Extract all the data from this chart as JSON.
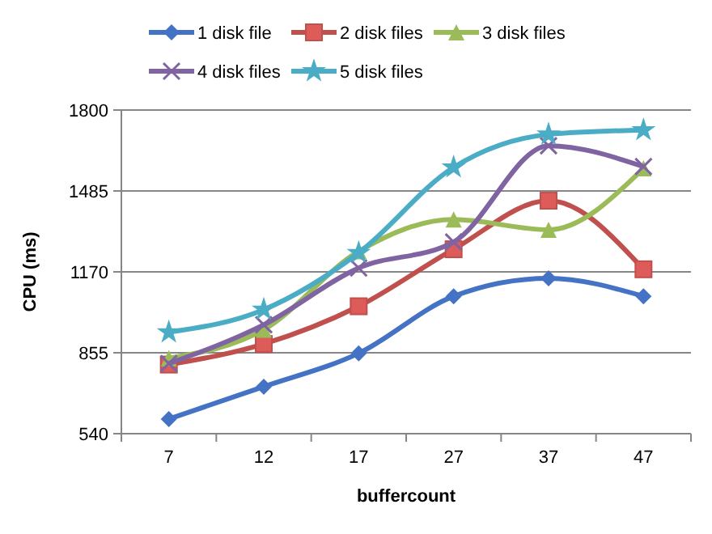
{
  "chart_data": {
    "type": "line",
    "xlabel": "buffercount",
    "ylabel": "CPU (ms)",
    "categories": [
      "7",
      "12",
      "17",
      "27",
      "37",
      "47"
    ],
    "ylim": [
      540,
      1800
    ],
    "yticks": [
      540,
      855,
      1170,
      1485,
      1800
    ],
    "grid": "y",
    "legend": "top",
    "series": [
      {
        "name": "1 disk file",
        "color": "#4472c4",
        "marker": "diamond",
        "values": [
          597,
          723,
          853,
          1075,
          1145,
          1075
        ]
      },
      {
        "name": "2 disk files",
        "color": "#c0504d",
        "marker": "square",
        "values": [
          809,
          889,
          1036,
          1258,
          1447,
          1180
        ]
      },
      {
        "name": "3 disk files",
        "color": "#9bbb59",
        "marker": "triangle",
        "values": [
          834,
          945,
          1250,
          1374,
          1334,
          1573
        ]
      },
      {
        "name": "4 disk files",
        "color": "#8064a2",
        "marker": "cross",
        "values": [
          813,
          964,
          1185,
          1286,
          1661,
          1580
        ]
      },
      {
        "name": "5 disk files",
        "color": "#4bacc6",
        "marker": "star",
        "values": [
          935,
          1023,
          1244,
          1577,
          1705,
          1722
        ]
      }
    ]
  }
}
